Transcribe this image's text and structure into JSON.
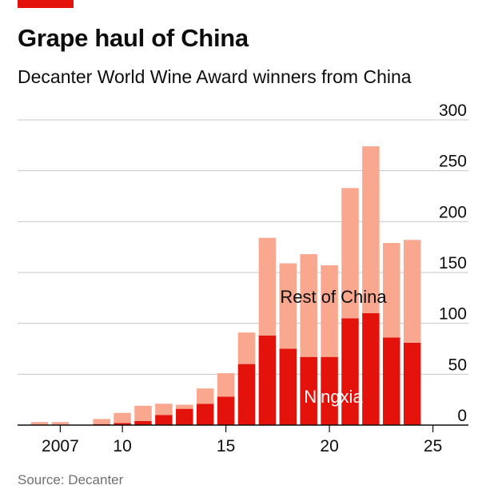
{
  "header": {
    "title": "Grape haul of China",
    "subtitle": "Decanter World Wine Award winners from China"
  },
  "footer": {
    "source": "Source: Decanter"
  },
  "colors": {
    "accent": "#e3120b",
    "ningxia": "#e3120b",
    "rest_of_china": "#f9a78f",
    "grid": "#c8c8c8",
    "axis": "#0d0d0d"
  },
  "chart_data": {
    "type": "bar",
    "stacked": true,
    "x": [
      2006,
      2007,
      2008,
      2009,
      2010,
      2011,
      2012,
      2013,
      2014,
      2015,
      2016,
      2017,
      2018,
      2019,
      2020,
      2021,
      2022,
      2023,
      2024,
      2025
    ],
    "x_tick_values": [
      2007,
      2010,
      2015,
      2020,
      2025
    ],
    "x_tick_labels": [
      "2007",
      "10",
      "15",
      "20",
      "25"
    ],
    "series": [
      {
        "name": "Ningxia",
        "values": [
          0,
          0,
          0,
          1,
          2,
          4,
          10,
          16,
          21,
          28,
          60,
          88,
          75,
          67,
          67,
          105,
          110,
          86,
          81,
          0
        ]
      },
      {
        "name": "Rest of China",
        "values": [
          3,
          3,
          0,
          5,
          10,
          15,
          11,
          4,
          15,
          23,
          31,
          96,
          84,
          101,
          90,
          128,
          164,
          93,
          101,
          0
        ]
      }
    ],
    "ylim": [
      0,
      300
    ],
    "y_ticks": [
      0,
      50,
      100,
      150,
      200,
      250,
      300
    ],
    "y_axis_position": "right",
    "grid": true,
    "legend": "inline labels",
    "xlabel": "",
    "ylabel": ""
  }
}
